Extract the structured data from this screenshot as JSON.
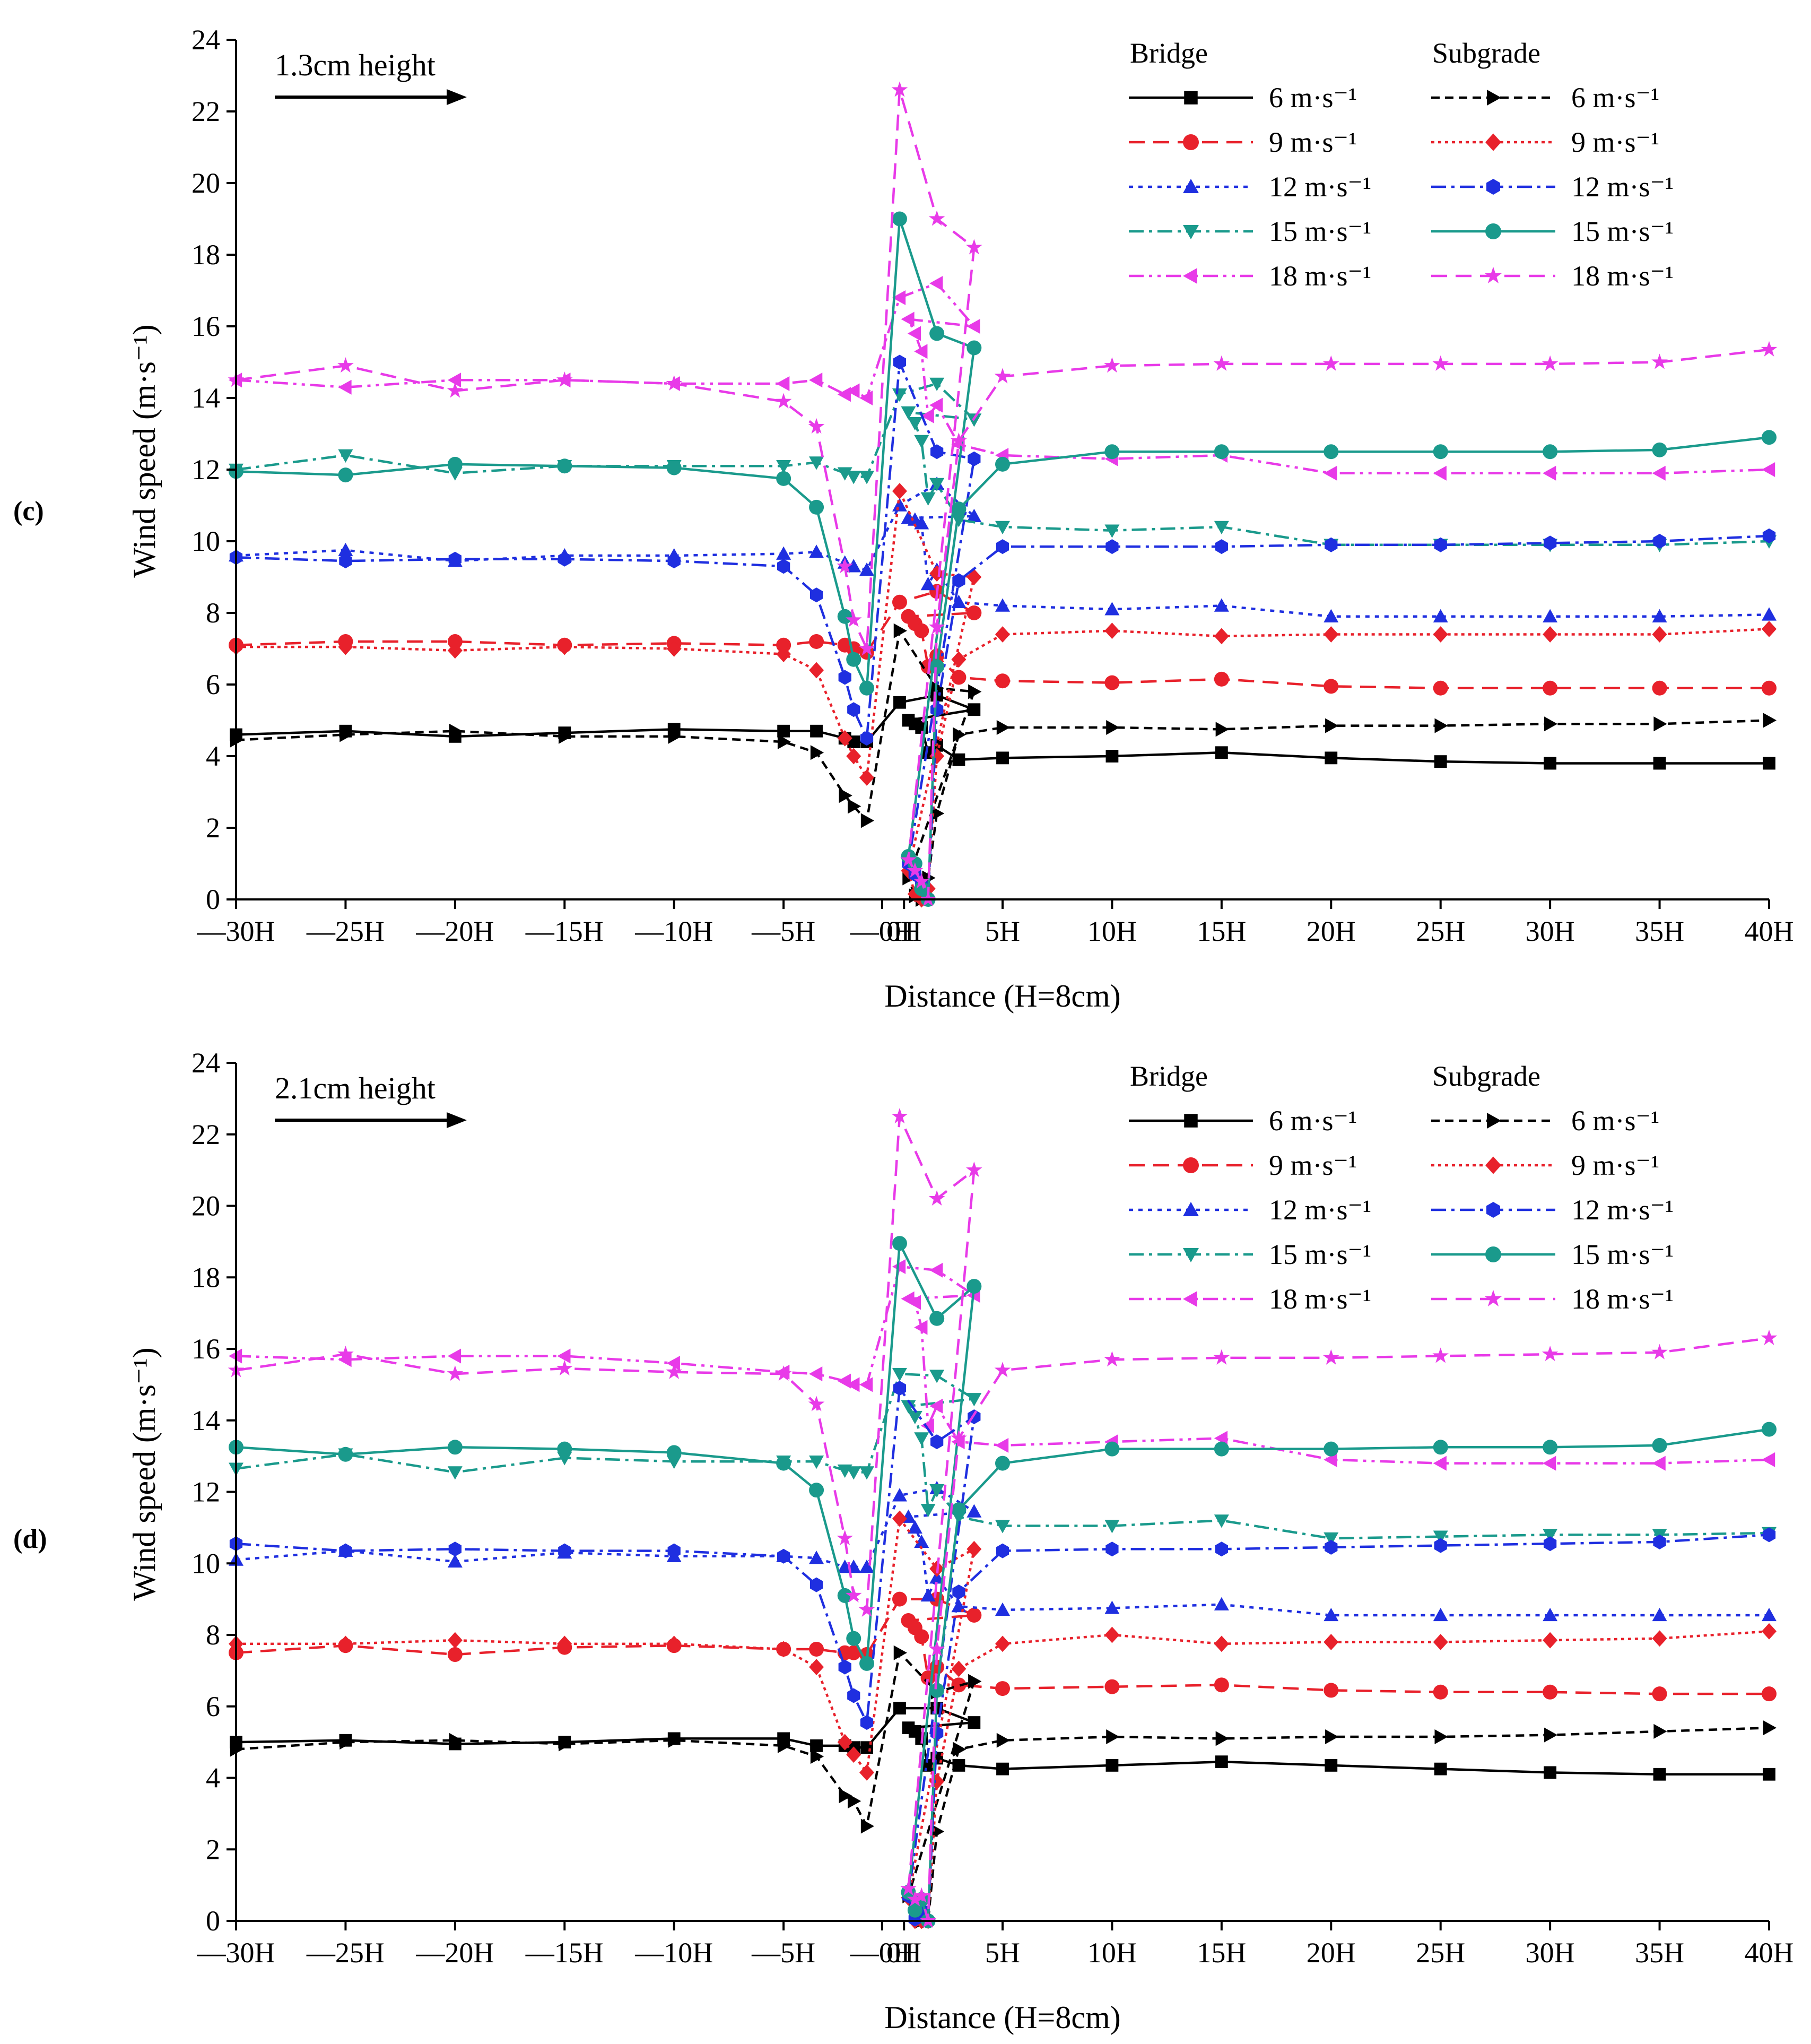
{
  "chart_data": [
    {
      "type": "line",
      "panel_label": "(c)",
      "annotation": "1.3cm height",
      "ylabel": "Wind speed (m·s⁻¹)",
      "xlabel": "Distance (H=8cm)",
      "ylim": [
        0,
        24
      ],
      "yticks": [
        0,
        2,
        4,
        6,
        8,
        10,
        12,
        14,
        16,
        18,
        20,
        22,
        24
      ],
      "xlim": [
        -30,
        40
      ],
      "xticks": [
        {
          "v": -30,
          "label": "—30H"
        },
        {
          "v": -25,
          "label": "—25H"
        },
        {
          "v": -20,
          "label": "—20H"
        },
        {
          "v": -15,
          "label": "—15H"
        },
        {
          "v": -10,
          "label": "—10H"
        },
        {
          "v": -5,
          "label": "—5H"
        },
        {
          "v": -0.5,
          "label": "—0H"
        },
        {
          "v": 0.5,
          "label": "0H"
        },
        {
          "v": 5,
          "label": "5H"
        },
        {
          "v": 10,
          "label": "10H"
        },
        {
          "v": 15,
          "label": "15H"
        },
        {
          "v": 20,
          "label": "20H"
        },
        {
          "v": 25,
          "label": "25H"
        },
        {
          "v": 30,
          "label": "30H"
        },
        {
          "v": 35,
          "label": "35H"
        },
        {
          "v": 40,
          "label": "40H"
        }
      ],
      "legend_group_titles": [
        "Bridge",
        "Subgrade"
      ],
      "x": [
        -30,
        -25,
        -20,
        -15,
        -10,
        -5,
        -3.5,
        -2.2,
        -1.8,
        -1.2,
        0.3,
        2.0,
        3.7,
        0.7,
        1.0,
        1.3,
        1.6,
        2.0,
        3.0,
        5,
        10,
        15,
        20,
        25,
        30,
        35,
        40
      ],
      "series": [
        {
          "name": "6 m·s⁻¹",
          "group": "Bridge",
          "color": "#000000",
          "marker": "square",
          "dash": "solid",
          "values": [
            4.6,
            4.7,
            4.55,
            4.65,
            4.75,
            4.7,
            4.7,
            4.5,
            4.4,
            4.4,
            5.5,
            5.7,
            5.3,
            5.0,
            4.9,
            4.8,
            4.1,
            4.3,
            3.9,
            3.95,
            4.0,
            4.1,
            3.95,
            3.85,
            3.8,
            3.8,
            3.8
          ]
        },
        {
          "name": "9 m·s⁻¹",
          "group": "Bridge",
          "color": "#e8212b",
          "marker": "circle",
          "dash": "dash",
          "values": [
            7.1,
            7.2,
            7.2,
            7.1,
            7.15,
            7.1,
            7.2,
            7.1,
            7.0,
            6.9,
            8.3,
            8.6,
            8.0,
            7.9,
            7.7,
            7.5,
            6.5,
            6.8,
            6.2,
            6.1,
            6.05,
            6.15,
            5.95,
            5.9,
            5.9,
            5.9,
            5.9
          ]
        },
        {
          "name": "12 m·s⁻¹",
          "group": "Bridge",
          "color": "#1f2fe0",
          "marker": "triangle-up",
          "dash": "dot",
          "values": [
            9.6,
            9.75,
            9.45,
            9.6,
            9.6,
            9.65,
            9.7,
            9.4,
            9.3,
            9.2,
            11.0,
            11.6,
            10.7,
            10.65,
            10.6,
            10.5,
            8.8,
            9.2,
            8.3,
            8.2,
            8.1,
            8.2,
            7.9,
            7.9,
            7.9,
            7.9,
            7.95
          ]
        },
        {
          "name": "15 m·s⁻¹",
          "group": "Bridge",
          "color": "#1a9a8c",
          "marker": "triangle-down",
          "dash": "dashdot",
          "values": [
            12.0,
            12.4,
            11.9,
            12.1,
            12.1,
            12.1,
            12.2,
            11.9,
            11.8,
            11.8,
            14.1,
            14.4,
            13.4,
            13.6,
            13.3,
            12.8,
            11.2,
            11.6,
            10.6,
            10.4,
            10.3,
            10.4,
            9.9,
            9.9,
            9.9,
            9.9,
            10.0
          ]
        },
        {
          "name": "18 m·s⁻¹",
          "group": "Bridge",
          "color": "#e83ae8",
          "marker": "triangle-left",
          "dash": "dashdotdot",
          "values": [
            14.5,
            14.3,
            14.5,
            14.5,
            14.4,
            14.4,
            14.5,
            14.1,
            14.2,
            14.0,
            16.8,
            17.2,
            16.0,
            16.2,
            15.8,
            15.3,
            13.5,
            13.8,
            12.7,
            12.4,
            12.3,
            12.4,
            11.9,
            11.9,
            11.9,
            11.9,
            12.0
          ]
        },
        {
          "name": "6 m·s⁻¹",
          "group": "Subgrade",
          "color": "#000000",
          "marker": "triangle-right",
          "dash": "shortdash",
          "values": [
            4.45,
            4.6,
            4.7,
            4.55,
            4.55,
            4.4,
            4.1,
            2.9,
            2.6,
            2.2,
            7.5,
            5.9,
            5.8,
            0.6,
            0.1,
            0.0,
            0.6,
            2.4,
            4.6,
            4.8,
            4.8,
            4.75,
            4.85,
            4.85,
            4.9,
            4.9,
            5.0
          ]
        },
        {
          "name": "9 m·s⁻¹",
          "group": "Subgrade",
          "color": "#e8212b",
          "marker": "diamond",
          "dash": "dotted",
          "values": [
            7.05,
            7.05,
            6.95,
            7.05,
            7.0,
            6.85,
            6.4,
            4.5,
            4.0,
            3.4,
            11.4,
            9.1,
            9.0,
            0.8,
            0.15,
            0.0,
            0.3,
            4.0,
            6.7,
            7.4,
            7.5,
            7.35,
            7.4,
            7.4,
            7.4,
            7.4,
            7.55
          ]
        },
        {
          "name": "12 m·s⁻¹",
          "group": "Subgrade",
          "color": "#1f2fe0",
          "marker": "hexagon",
          "dash": "dashdot",
          "values": [
            9.55,
            9.45,
            9.5,
            9.5,
            9.45,
            9.3,
            8.5,
            6.2,
            5.3,
            4.5,
            15.0,
            12.5,
            12.3,
            1.0,
            0.7,
            0.4,
            0.0,
            5.3,
            8.9,
            9.85,
            9.85,
            9.85,
            9.9,
            9.9,
            9.95,
            10.0,
            10.15
          ]
        },
        {
          "name": "15 m·s⁻¹",
          "group": "Subgrade",
          "color": "#1a9a8c",
          "marker": "circle",
          "dash": "solid",
          "values": [
            11.95,
            11.85,
            12.15,
            12.1,
            12.05,
            11.75,
            10.95,
            7.9,
            6.7,
            5.9,
            19.0,
            15.8,
            15.4,
            1.2,
            1.0,
            0.3,
            0.0,
            6.5,
            10.9,
            12.15,
            12.5,
            12.5,
            12.5,
            12.5,
            12.5,
            12.55,
            12.9
          ]
        },
        {
          "name": "18 m·s⁻¹",
          "group": "Subgrade",
          "color": "#e83ae8",
          "marker": "star",
          "dash": "dash",
          "values": [
            14.5,
            14.9,
            14.2,
            14.5,
            14.4,
            13.9,
            13.2,
            9.3,
            7.8,
            7.0,
            22.6,
            19.0,
            18.2,
            1.1,
            0.8,
            0.5,
            0.0,
            7.6,
            12.8,
            14.6,
            14.9,
            14.95,
            14.95,
            14.95,
            14.95,
            15.0,
            15.35
          ]
        }
      ]
    },
    {
      "type": "line",
      "panel_label": "(d)",
      "annotation": "2.1cm height",
      "ylabel": "Wind speed (m·s⁻¹)",
      "xlabel": "Distance (H=8cm)",
      "ylim": [
        0,
        24
      ],
      "yticks": [
        0,
        2,
        4,
        6,
        8,
        10,
        12,
        14,
        16,
        18,
        20,
        22,
        24
      ],
      "xlim": [
        -30,
        40
      ],
      "xticks": [
        {
          "v": -30,
          "label": "—30H"
        },
        {
          "v": -25,
          "label": "—25H"
        },
        {
          "v": -20,
          "label": "—20H"
        },
        {
          "v": -15,
          "label": "—15H"
        },
        {
          "v": -10,
          "label": "—10H"
        },
        {
          "v": -5,
          "label": "—5H"
        },
        {
          "v": -0.5,
          "label": "—0H"
        },
        {
          "v": 0.5,
          "label": "0H"
        },
        {
          "v": 5,
          "label": "5H"
        },
        {
          "v": 10,
          "label": "10H"
        },
        {
          "v": 15,
          "label": "15H"
        },
        {
          "v": 20,
          "label": "20H"
        },
        {
          "v": 25,
          "label": "25H"
        },
        {
          "v": 30,
          "label": "30H"
        },
        {
          "v": 35,
          "label": "35H"
        },
        {
          "v": 40,
          "label": "40H"
        }
      ],
      "legend_group_titles": [
        "Bridge",
        "Subgrade"
      ],
      "x": [
        -30,
        -25,
        -20,
        -15,
        -10,
        -5,
        -3.5,
        -2.2,
        -1.8,
        -1.2,
        0.3,
        2.0,
        3.7,
        0.7,
        1.0,
        1.3,
        1.6,
        2.0,
        3.0,
        5,
        10,
        15,
        20,
        25,
        30,
        35,
        40
      ],
      "series": [
        {
          "name": "6 m·s⁻¹",
          "group": "Bridge",
          "color": "#000000",
          "marker": "square",
          "dash": "solid",
          "values": [
            5.0,
            5.05,
            4.95,
            5.0,
            5.1,
            5.1,
            4.9,
            4.9,
            4.85,
            4.85,
            5.95,
            5.95,
            5.55,
            5.4,
            5.3,
            5.1,
            4.35,
            4.55,
            4.35,
            4.25,
            4.35,
            4.45,
            4.35,
            4.25,
            4.15,
            4.1,
            4.1
          ]
        },
        {
          "name": "9 m·s⁻¹",
          "group": "Bridge",
          "color": "#e8212b",
          "marker": "circle",
          "dash": "dash",
          "values": [
            7.5,
            7.7,
            7.45,
            7.65,
            7.7,
            7.6,
            7.6,
            7.5,
            7.5,
            7.45,
            9.0,
            9.0,
            8.55,
            8.4,
            8.2,
            7.95,
            6.8,
            7.1,
            6.6,
            6.5,
            6.55,
            6.6,
            6.45,
            6.4,
            6.4,
            6.35,
            6.35
          ]
        },
        {
          "name": "12 m·s⁻¹",
          "group": "Bridge",
          "color": "#1f2fe0",
          "marker": "triangle-up",
          "dash": "dot",
          "values": [
            10.1,
            10.35,
            10.05,
            10.3,
            10.2,
            10.2,
            10.15,
            9.9,
            9.9,
            9.9,
            11.9,
            12.1,
            11.45,
            11.3,
            11.0,
            10.6,
            9.1,
            9.6,
            8.8,
            8.7,
            8.75,
            8.85,
            8.55,
            8.55,
            8.55,
            8.55,
            8.55
          ]
        },
        {
          "name": "15 m·s⁻¹",
          "group": "Bridge",
          "color": "#1a9a8c",
          "marker": "triangle-down",
          "dash": "dashdot",
          "values": [
            12.65,
            13.05,
            12.55,
            12.95,
            12.85,
            12.85,
            12.85,
            12.6,
            12.55,
            12.55,
            15.3,
            15.25,
            14.6,
            14.4,
            14.1,
            13.5,
            11.5,
            12.05,
            11.3,
            11.05,
            11.05,
            11.2,
            10.7,
            10.75,
            10.8,
            10.8,
            10.85
          ]
        },
        {
          "name": "18 m·s⁻¹",
          "group": "Bridge",
          "color": "#e83ae8",
          "marker": "triangle-left",
          "dash": "dashdotdot",
          "values": [
            15.8,
            15.7,
            15.8,
            15.8,
            15.6,
            15.35,
            15.3,
            15.1,
            15.0,
            15.0,
            18.3,
            18.2,
            17.5,
            17.4,
            17.3,
            16.6,
            13.85,
            14.4,
            13.4,
            13.3,
            13.4,
            13.5,
            12.9,
            12.8,
            12.8,
            12.8,
            12.9
          ]
        },
        {
          "name": "6 m·s⁻¹",
          "group": "Subgrade",
          "color": "#000000",
          "marker": "triangle-right",
          "dash": "shortdash",
          "values": [
            4.8,
            5.0,
            5.05,
            4.95,
            5.05,
            4.9,
            4.6,
            3.5,
            3.35,
            2.65,
            7.5,
            6.4,
            6.7,
            0.7,
            0.3,
            0.0,
            0.0,
            2.5,
            4.8,
            5.05,
            5.15,
            5.1,
            5.15,
            5.15,
            5.2,
            5.3,
            5.4
          ]
        },
        {
          "name": "9 m·s⁻¹",
          "group": "Subgrade",
          "color": "#e8212b",
          "marker": "diamond",
          "dash": "dotted",
          "values": [
            7.75,
            7.75,
            7.85,
            7.75,
            7.75,
            7.6,
            7.1,
            5.0,
            4.65,
            4.15,
            11.25,
            9.85,
            10.4,
            0.65,
            0.0,
            0.0,
            0.0,
            3.9,
            7.05,
            7.75,
            8.0,
            7.75,
            7.8,
            7.8,
            7.85,
            7.9,
            8.1
          ]
        },
        {
          "name": "12 m·s⁻¹",
          "group": "Subgrade",
          "color": "#1f2fe0",
          "marker": "hexagon",
          "dash": "dashdot",
          "values": [
            10.55,
            10.35,
            10.4,
            10.35,
            10.35,
            10.2,
            9.4,
            7.1,
            6.3,
            5.55,
            14.9,
            13.4,
            14.1,
            0.7,
            0.05,
            0.3,
            0.0,
            5.25,
            9.2,
            10.35,
            10.4,
            10.4,
            10.45,
            10.5,
            10.55,
            10.6,
            10.8
          ]
        },
        {
          "name": "15 m·s⁻¹",
          "group": "Subgrade",
          "color": "#1a9a8c",
          "marker": "circle",
          "dash": "solid",
          "values": [
            13.25,
            13.05,
            13.25,
            13.2,
            13.1,
            12.8,
            12.05,
            9.1,
            7.9,
            7.2,
            18.95,
            16.85,
            17.75,
            0.8,
            0.3,
            0.6,
            0.0,
            6.45,
            11.5,
            12.8,
            13.2,
            13.2,
            13.2,
            13.25,
            13.25,
            13.3,
            13.75
          ]
        },
        {
          "name": "18 m·s⁻¹",
          "group": "Subgrade",
          "color": "#e83ae8",
          "marker": "star",
          "dash": "dash",
          "values": [
            15.4,
            15.85,
            15.3,
            15.45,
            15.35,
            15.3,
            14.45,
            10.7,
            9.1,
            8.7,
            22.5,
            20.2,
            21.0,
            0.9,
            0.6,
            0.7,
            0.0,
            7.6,
            13.5,
            15.4,
            15.7,
            15.75,
            15.75,
            15.8,
            15.85,
            15.9,
            16.3
          ]
        }
      ]
    }
  ]
}
